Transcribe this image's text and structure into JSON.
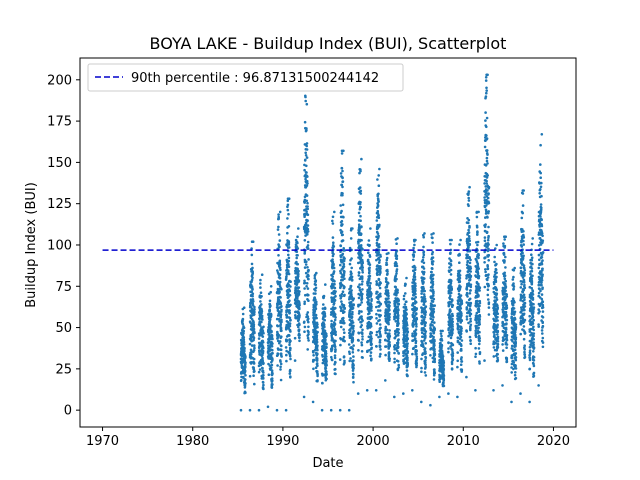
{
  "chart_data": {
    "type": "scatter",
    "title": "BOYA LAKE - Buildup Index (BUI), Scatterplot",
    "xlabel": "Date",
    "ylabel": "Buildup Index (BUI)",
    "xlim": [
      1967.5,
      2022.5
    ],
    "ylim": [
      -10.2,
      213.2
    ],
    "xticks": [
      "1970",
      "1980",
      "1990",
      "2000",
      "2010",
      "2020"
    ],
    "yticks": [
      "0",
      "25",
      "50",
      "75",
      "100",
      "125",
      "150",
      "175",
      "200"
    ],
    "legend_position": "upper left",
    "marker_color": "#1f77b4",
    "line_color": "#0000cc",
    "reference_line": {
      "label": "90th percentile : 96.87131500244142",
      "value": 96.87131500244142,
      "x_range": [
        1970,
        2020
      ],
      "style": "dashed"
    },
    "series": [
      {
        "type": "seasonal_ranges",
        "description_of_points": "daily BUI values per fire season; each season rises from a low start value to a peak",
        "seasons": [
          {
            "year": 1985,
            "min": 0,
            "max": 62
          },
          {
            "year": 1986,
            "min": 0,
            "max": 102
          },
          {
            "year": 1987,
            "min": 0,
            "max": 82
          },
          {
            "year": 1988,
            "min": 2,
            "max": 75
          },
          {
            "year": 1989,
            "min": 0,
            "max": 120
          },
          {
            "year": 1990,
            "min": 0,
            "max": 128
          },
          {
            "year": 1991,
            "min": 30,
            "max": 110
          },
          {
            "year": 1992,
            "min": 8,
            "max": 195
          },
          {
            "year": 1993,
            "min": 5,
            "max": 83
          },
          {
            "year": 1994,
            "min": 0,
            "max": 76
          },
          {
            "year": 1995,
            "min": 0,
            "max": 120
          },
          {
            "year": 1996,
            "min": 0,
            "max": 157
          },
          {
            "year": 1997,
            "min": 0,
            "max": 110
          },
          {
            "year": 1998,
            "min": 10,
            "max": 152
          },
          {
            "year": 1999,
            "min": 12,
            "max": 110
          },
          {
            "year": 2000,
            "min": 12,
            "max": 146
          },
          {
            "year": 2001,
            "min": 18,
            "max": 95
          },
          {
            "year": 2002,
            "min": 8,
            "max": 104
          },
          {
            "year": 2003,
            "min": 10,
            "max": 80
          },
          {
            "year": 2004,
            "min": 12,
            "max": 103
          },
          {
            "year": 2005,
            "min": 5,
            "max": 107
          },
          {
            "year": 2006,
            "min": 3,
            "max": 107
          },
          {
            "year": 2007,
            "min": 8,
            "max": 48
          },
          {
            "year": 2008,
            "min": 10,
            "max": 103
          },
          {
            "year": 2009,
            "min": 8,
            "max": 103
          },
          {
            "year": 2010,
            "min": 20,
            "max": 135
          },
          {
            "year": 2011,
            "min": 12,
            "max": 120
          },
          {
            "year": 2012,
            "min": 30,
            "max": 203
          },
          {
            "year": 2013,
            "min": 12,
            "max": 100
          },
          {
            "year": 2014,
            "min": 15,
            "max": 105
          },
          {
            "year": 2015,
            "min": 5,
            "max": 86
          },
          {
            "year": 2016,
            "min": 10,
            "max": 133
          },
          {
            "year": 2017,
            "min": 5,
            "max": 104
          },
          {
            "year": 2018,
            "min": 15,
            "max": 167
          }
        ]
      }
    ]
  }
}
